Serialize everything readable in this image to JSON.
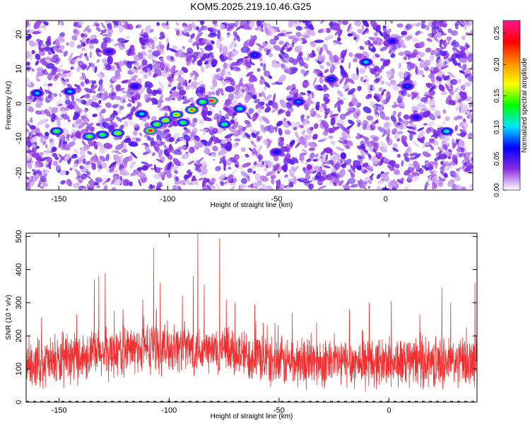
{
  "title": "KOM5.2025.219.10.46.G25",
  "chart_data": [
    {
      "type": "heatmap",
      "xlabel": "Height of straight line (km)",
      "ylabel": "Frequency (Hz)",
      "xlim": [
        -165,
        40
      ],
      "ylim": [
        -25,
        24
      ],
      "x_ticks": [
        -150,
        -100,
        -50,
        0
      ],
      "y_ticks": [
        -20,
        -10,
        0,
        10,
        20
      ],
      "grid": false,
      "colorbar": {
        "label": "Normalized spectral amplitude",
        "range": [
          0.0,
          0.27
        ],
        "ticks": [
          "0.00",
          "0.05",
          "0.10",
          "0.15",
          "0.20",
          "0.25"
        ],
        "colors": [
          "#ffffff",
          "#8a2be2",
          "#0000ff",
          "#00e5ff",
          "#00ff00",
          "#ffff00",
          "#ff8c00",
          "#ff0000",
          "#ff1493"
        ]
      },
      "background_level": 0.03,
      "hotspots": [
        {
          "x": -80,
          "y": 0.8,
          "value": 0.27
        },
        {
          "x": -108,
          "y": -7.8,
          "value": 0.26
        },
        {
          "x": -89,
          "y": -1.8,
          "value": 0.22
        },
        {
          "x": -96,
          "y": -3.2,
          "value": 0.2
        },
        {
          "x": -101,
          "y": -4.8,
          "value": 0.19
        },
        {
          "x": -123,
          "y": -8.5,
          "value": 0.18
        },
        {
          "x": -136,
          "y": -9.5,
          "value": 0.16
        },
        {
          "x": -151,
          "y": -8,
          "value": 0.15
        },
        {
          "x": -105,
          "y": -6,
          "value": 0.16
        },
        {
          "x": -130,
          "y": -9,
          "value": 0.14
        },
        {
          "x": -84,
          "y": 0.5,
          "value": 0.15
        },
        {
          "x": -74,
          "y": -6,
          "value": 0.13
        },
        {
          "x": -67,
          "y": -1.5,
          "value": 0.12
        },
        {
          "x": -93,
          "y": -5.5,
          "value": 0.14
        },
        {
          "x": -112,
          "y": -3,
          "value": 0.11
        },
        {
          "x": -160,
          "y": 3,
          "value": 0.1
        },
        {
          "x": -145,
          "y": 3.5,
          "value": 0.1
        },
        {
          "x": -9,
          "y": 12,
          "value": 0.11
        },
        {
          "x": -60,
          "y": 14,
          "value": 0.08
        },
        {
          "x": 28,
          "y": -8,
          "value": 0.12
        },
        {
          "x": 3,
          "y": 18,
          "value": 0.07
        },
        {
          "x": -40,
          "y": 0.5,
          "value": 0.09
        },
        {
          "x": -25,
          "y": 7,
          "value": 0.08
        },
        {
          "x": 10,
          "y": 5,
          "value": 0.08
        },
        {
          "x": -115,
          "y": 5,
          "value": 0.07
        },
        {
          "x": -50,
          "y": -14,
          "value": 0.07
        },
        {
          "x": 14,
          "y": -4,
          "value": 0.07
        },
        {
          "x": -127,
          "y": 15,
          "value": 0.06
        }
      ]
    },
    {
      "type": "line",
      "xlabel": "Height of straight line (km)",
      "ylabel": "SNR (10 * v/v)",
      "xlim": [
        -165,
        40
      ],
      "ylim": [
        0,
        510
      ],
      "x_ticks": [
        -150,
        -100,
        -50,
        0
      ],
      "y_ticks": [
        0,
        100,
        200,
        300,
        400,
        500
      ],
      "grid": false,
      "series_color": "#f03030",
      "baseline": 120,
      "spread": 60,
      "peaks": [
        {
          "x": -87,
          "y": 510
        },
        {
          "x": -77,
          "y": 495
        },
        {
          "x": -107,
          "y": 465
        },
        {
          "x": -129,
          "y": 390
        },
        {
          "x": -132,
          "y": 380
        },
        {
          "x": -134,
          "y": 370
        },
        {
          "x": -89,
          "y": 380
        },
        {
          "x": -104,
          "y": 360
        },
        {
          "x": -84,
          "y": 355
        },
        {
          "x": -112,
          "y": 310
        },
        {
          "x": -94,
          "y": 320
        },
        {
          "x": -74,
          "y": 310
        },
        {
          "x": -70,
          "y": 300
        },
        {
          "x": -61,
          "y": 295
        },
        {
          "x": -121,
          "y": 280
        },
        {
          "x": -125,
          "y": 275
        },
        {
          "x": -142,
          "y": 265
        },
        {
          "x": -158,
          "y": 255
        },
        {
          "x": -44,
          "y": 270
        },
        {
          "x": -18,
          "y": 280
        },
        {
          "x": -9,
          "y": 300
        },
        {
          "x": 1,
          "y": 305
        },
        {
          "x": 24,
          "y": 345
        },
        {
          "x": 28,
          "y": 300
        },
        {
          "x": 39,
          "y": 360
        },
        {
          "x": 14,
          "y": 265
        },
        {
          "x": -33,
          "y": 240
        }
      ]
    }
  ]
}
